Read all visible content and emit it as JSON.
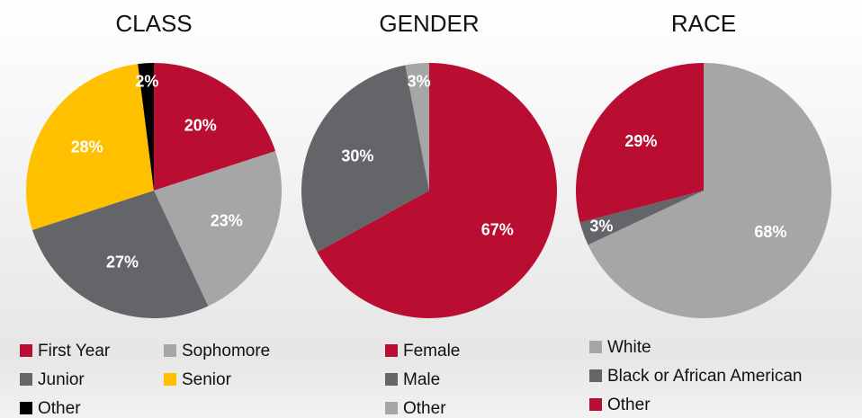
{
  "chart_data": [
    {
      "type": "pie",
      "title": "CLASS",
      "categories": [
        "First Year",
        "Sophomore",
        "Junior",
        "Senior",
        "Other"
      ],
      "values": [
        20,
        23,
        27,
        28,
        2
      ],
      "value_labels": [
        "20%",
        "23%",
        "27%",
        "28%",
        "2%"
      ],
      "colors": [
        "#b90e31",
        "#a6a6a6",
        "#636569",
        "#ffc000",
        "#000000"
      ]
    },
    {
      "type": "pie",
      "title": "GENDER",
      "categories": [
        "Female",
        "Male",
        "Other"
      ],
      "values": [
        67,
        30,
        3
      ],
      "value_labels": [
        "67%",
        "30%",
        "3%"
      ],
      "colors": [
        "#b90e31",
        "#636569",
        "#a6a6a6"
      ]
    },
    {
      "type": "pie",
      "title": "RACE",
      "categories": [
        "White",
        "Black or African American",
        "Other"
      ],
      "values": [
        68,
        3,
        29
      ],
      "value_labels": [
        "68%",
        "3%",
        "29%"
      ],
      "colors": [
        "#a6a6a6",
        "#636569",
        "#b90e31"
      ]
    }
  ]
}
